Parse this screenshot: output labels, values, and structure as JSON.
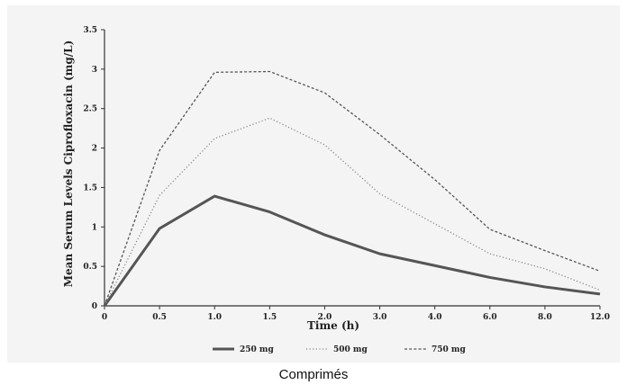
{
  "caption": "Comprimés",
  "chart_data": {
    "type": "line",
    "xlabel": "Time (h)",
    "ylabel": "Mean Serum Levels Ciprofloxacin (mg/L)",
    "categories": [
      "0",
      "0.5",
      "1.0",
      "1.5",
      "2.0",
      "3.0",
      "4.0",
      "6.0",
      "8.0",
      "12.0"
    ],
    "ylim": [
      0,
      3.5
    ],
    "y_ticks": [
      "0",
      "0.5",
      "1",
      "1.5",
      "2",
      "2.5",
      "3",
      "3.5"
    ],
    "grid": false,
    "legend_position": "bottom",
    "series": [
      {
        "name": "250 mg",
        "style": "solid",
        "color": "#555555",
        "values": [
          0,
          0.98,
          1.39,
          1.19,
          0.9,
          0.66,
          0.51,
          0.36,
          0.24,
          0.15
        ]
      },
      {
        "name": "500 mg",
        "style": "dotted",
        "color": "#888888",
        "values": [
          0,
          1.4,
          2.12,
          2.38,
          2.04,
          1.42,
          1.04,
          0.66,
          0.47,
          0.2
        ]
      },
      {
        "name": "750 mg",
        "style": "dashed",
        "color": "#555555",
        "values": [
          0,
          1.97,
          2.96,
          2.97,
          2.7,
          2.17,
          1.6,
          0.97,
          0.7,
          0.44
        ]
      }
    ]
  }
}
